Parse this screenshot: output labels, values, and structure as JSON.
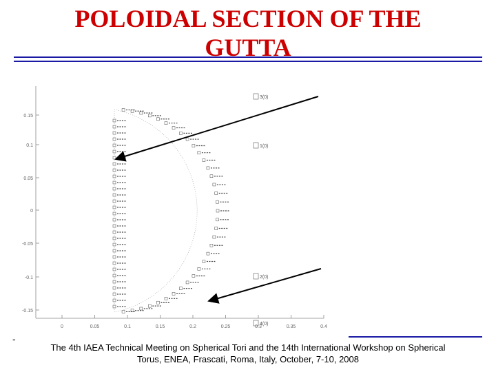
{
  "slide": {
    "title_line1": "POLOIDAL SECTION OF THE",
    "title_line2": "GUTTA",
    "footer_line1": "The 4th IAEA Technical Meeting on Spherical Tori and the 14th International Workshop on Spherical",
    "footer_line2": "Torus, ENEA, Frascati, Roma, Italy, October, 7-10, 2008",
    "footer_dash": "-"
  },
  "colors": {
    "title": "#cc0000",
    "rules": "#1a1aa6",
    "plot_points": "#444444",
    "arrows": "#000000"
  },
  "plot": {
    "y_ticks": [
      "0.15",
      "0.1",
      "0.05",
      "0",
      "-0.05",
      "-0.1",
      "-0.15"
    ],
    "x_ticks": [
      "0",
      "0.05",
      "0.1",
      "0.15",
      "0.2",
      "0.25",
      "0.3",
      "0.35",
      "0.4"
    ],
    "legend_boxes": [
      {
        "label": "3(0)"
      },
      {
        "label": "1(0)"
      },
      {
        "label": "2(0)"
      },
      {
        "label": "4(0)"
      }
    ]
  }
}
